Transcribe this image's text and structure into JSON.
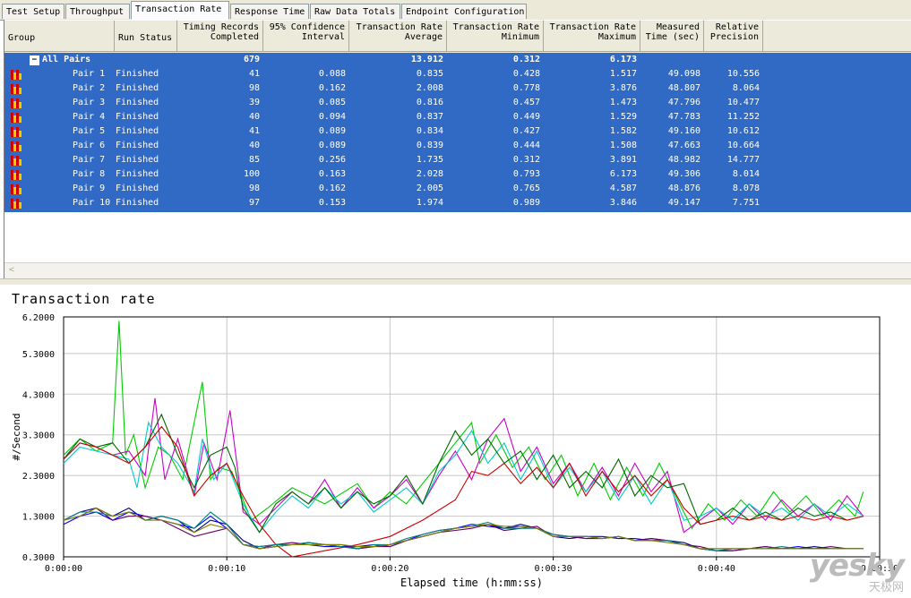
{
  "tabs": [
    {
      "label": "Test Setup",
      "active": false
    },
    {
      "label": "Throughput",
      "active": false
    },
    {
      "label": "Transaction Rate",
      "active": true
    },
    {
      "label": "Response Time",
      "active": false
    },
    {
      "label": "Raw Data Totals",
      "active": false
    },
    {
      "label": "Endpoint Configuration",
      "active": false
    }
  ],
  "table": {
    "headers": {
      "group": "Group",
      "run_status": "Run Status",
      "timing_records": [
        "Timing Records",
        "Completed"
      ],
      "confidence": [
        "95% Confidence",
        "Interval"
      ],
      "avg": [
        "Transaction Rate",
        "Average"
      ],
      "min": [
        "Transaction Rate",
        "Minimum"
      ],
      "max": [
        "Transaction Rate",
        "Maximum"
      ],
      "measured": [
        "Measured",
        "Time (sec)"
      ],
      "precision": [
        "Relative",
        "Precision"
      ]
    },
    "summary": {
      "group": "All Pairs",
      "records": "679",
      "avg": "13.912",
      "min": "0.312",
      "max": "6.173"
    },
    "rows": [
      {
        "group": "Pair 1",
        "status": "Finished",
        "records": "41",
        "ci": "0.088",
        "avg": "0.835",
        "min": "0.428",
        "max": "1.517",
        "time": "49.098",
        "prec": "10.556"
      },
      {
        "group": "Pair 2",
        "status": "Finished",
        "records": "98",
        "ci": "0.162",
        "avg": "2.008",
        "min": "0.778",
        "max": "3.876",
        "time": "48.807",
        "prec": "8.064"
      },
      {
        "group": "Pair 3",
        "status": "Finished",
        "records": "39",
        "ci": "0.085",
        "avg": "0.816",
        "min": "0.457",
        "max": "1.473",
        "time": "47.796",
        "prec": "10.477"
      },
      {
        "group": "Pair 4",
        "status": "Finished",
        "records": "40",
        "ci": "0.094",
        "avg": "0.837",
        "min": "0.449",
        "max": "1.529",
        "time": "47.783",
        "prec": "11.252"
      },
      {
        "group": "Pair 5",
        "status": "Finished",
        "records": "41",
        "ci": "0.089",
        "avg": "0.834",
        "min": "0.427",
        "max": "1.582",
        "time": "49.160",
        "prec": "10.612"
      },
      {
        "group": "Pair 6",
        "status": "Finished",
        "records": "40",
        "ci": "0.089",
        "avg": "0.839",
        "min": "0.444",
        "max": "1.508",
        "time": "47.663",
        "prec": "10.664"
      },
      {
        "group": "Pair 7",
        "status": "Finished",
        "records": "85",
        "ci": "0.256",
        "avg": "1.735",
        "min": "0.312",
        "max": "3.891",
        "time": "48.982",
        "prec": "14.777"
      },
      {
        "group": "Pair 8",
        "status": "Finished",
        "records": "100",
        "ci": "0.163",
        "avg": "2.028",
        "min": "0.793",
        "max": "6.173",
        "time": "49.306",
        "prec": "8.014"
      },
      {
        "group": "Pair 9",
        "status": "Finished",
        "records": "98",
        "ci": "0.162",
        "avg": "2.005",
        "min": "0.765",
        "max": "4.587",
        "time": "48.876",
        "prec": "8.078"
      },
      {
        "group": "Pair 10",
        "status": "Finished",
        "records": "97",
        "ci": "0.153",
        "avg": "1.974",
        "min": "0.989",
        "max": "3.846",
        "time": "49.147",
        "prec": "7.751"
      }
    ],
    "selection_color": "#316ac5"
  },
  "chart_title": "Transaction rate",
  "watermark": {
    "big": "yesky",
    "small": "天极网"
  },
  "chart_data": {
    "type": "line",
    "title": "Transaction rate",
    "xlabel": "Elapsed time (h:mm:ss)",
    "ylabel": "#/Second",
    "xlim": [
      0,
      50
    ],
    "ylim": [
      0.3,
      6.2
    ],
    "x_ticks": [
      "0:00:00",
      "0:00:10",
      "0:00:20",
      "0:00:30",
      "0:00:40",
      "0:00:50"
    ],
    "y_ticks": [
      "6.2000",
      "5.3000",
      "4.3000",
      "3.3000",
      "2.3000",
      "1.3000",
      "0.3000"
    ],
    "y_tick_values": [
      6.2,
      5.3,
      4.3,
      3.3,
      2.3,
      1.3,
      0.3
    ],
    "grid": true,
    "series": [
      {
        "color": "#00cc00",
        "x": [
          0,
          1,
          2,
          3,
          3.4,
          3.8,
          4.3,
          5,
          5.8,
          6.5,
          7.3,
          8.5,
          9,
          9.5,
          10.3,
          11.5,
          12.5,
          14,
          16,
          18,
          19,
          20,
          21,
          22,
          23,
          24,
          25,
          25.5,
          26.5,
          27.5,
          28.5,
          29.5,
          30.5,
          31.5,
          32.5,
          33.5,
          34.5,
          35.5,
          36.5,
          37.5,
          38.5,
          39.5,
          40.5,
          41.5,
          42.5,
          43.5,
          44.5,
          45.5,
          46.5,
          47.5,
          48.5,
          49
        ],
        "y": [
          2.8,
          3.2,
          2.9,
          3.1,
          6.1,
          2.8,
          3.3,
          2.0,
          3.0,
          2.8,
          2.2,
          4.6,
          2.2,
          2.5,
          2.4,
          1.2,
          1.5,
          2.0,
          1.6,
          2.1,
          1.5,
          1.9,
          1.6,
          2.1,
          2.6,
          3.1,
          3.6,
          2.6,
          3.3,
          2.5,
          3.0,
          2.2,
          2.8,
          1.8,
          2.6,
          1.7,
          2.5,
          1.8,
          2.6,
          1.8,
          1.0,
          1.6,
          1.2,
          1.7,
          1.3,
          1.9,
          1.4,
          1.8,
          1.3,
          1.7,
          1.3,
          1.9
        ]
      },
      {
        "color": "#cc00cc",
        "x": [
          0,
          1,
          2,
          3,
          4,
          5,
          5.6,
          6.2,
          7,
          8,
          8.6,
          9.4,
          10.2,
          11,
          12,
          13,
          14,
          15,
          16,
          17,
          18,
          19,
          20,
          21,
          22,
          23,
          24,
          25,
          26,
          27,
          28,
          29,
          30,
          31,
          32,
          33,
          34,
          35,
          36,
          37,
          38,
          39,
          40,
          41,
          42,
          43,
          44,
          45,
          46,
          47,
          48,
          49
        ],
        "y": [
          2.7,
          3.1,
          3.0,
          2.8,
          2.9,
          2.3,
          4.2,
          2.2,
          3.2,
          1.8,
          3.1,
          2.2,
          3.9,
          1.4,
          1.1,
          1.5,
          1.9,
          1.6,
          2.2,
          1.5,
          2.0,
          1.5,
          1.8,
          2.2,
          1.6,
          2.3,
          2.9,
          2.2,
          3.2,
          3.7,
          2.4,
          3.0,
          2.1,
          2.6,
          1.9,
          2.5,
          1.8,
          2.6,
          1.9,
          2.4,
          0.9,
          1.2,
          1.5,
          1.1,
          1.6,
          1.2,
          1.7,
          1.3,
          1.6,
          1.2,
          1.8,
          1.3
        ]
      },
      {
        "color": "#00cccc",
        "x": [
          0,
          1,
          2,
          3,
          4,
          4.5,
          5.2,
          6,
          7,
          8,
          8.5,
          9.2,
          10,
          11,
          12,
          13,
          14,
          15,
          16,
          17,
          18,
          19,
          20,
          21,
          22,
          23,
          24,
          25,
          26,
          27,
          28,
          29,
          30,
          31,
          32,
          33,
          34,
          35,
          36,
          37,
          38,
          39,
          40,
          41,
          42,
          43,
          44,
          45,
          46,
          47,
          48,
          49
        ],
        "y": [
          2.6,
          3.0,
          2.9,
          2.8,
          2.7,
          2.0,
          3.6,
          3.0,
          2.6,
          1.9,
          3.2,
          2.2,
          2.6,
          1.6,
          0.9,
          1.4,
          1.8,
          1.5,
          2.0,
          1.6,
          1.9,
          1.4,
          1.7,
          2.0,
          1.6,
          2.4,
          2.8,
          3.4,
          2.6,
          3.1,
          2.2,
          2.9,
          2.0,
          2.5,
          1.9,
          2.4,
          1.7,
          2.3,
          1.6,
          2.2,
          1.2,
          1.3,
          1.5,
          1.2,
          1.6,
          1.3,
          1.5,
          1.2,
          1.6,
          1.3,
          1.6,
          1.3
        ]
      },
      {
        "color": "#006600",
        "x": [
          0,
          1,
          2,
          3,
          4,
          5,
          6,
          7,
          8,
          9,
          10,
          10.5,
          11,
          12,
          13,
          14,
          15,
          16,
          17,
          18,
          19,
          20,
          21,
          22,
          23,
          24,
          25,
          26,
          27,
          28,
          29,
          30,
          31,
          32,
          33,
          34,
          35,
          36,
          37,
          38,
          39,
          40,
          41,
          42,
          43,
          44,
          45,
          46,
          47,
          48,
          49
        ],
        "y": [
          2.7,
          3.2,
          3.0,
          3.1,
          2.6,
          3.0,
          3.8,
          2.8,
          2.0,
          2.8,
          3.0,
          2.5,
          1.5,
          0.9,
          1.6,
          1.9,
          1.6,
          2.0,
          1.5,
          1.9,
          1.6,
          1.8,
          2.3,
          1.6,
          2.6,
          3.4,
          2.8,
          3.2,
          2.6,
          2.9,
          2.2,
          2.8,
          2.0,
          2.4,
          2.0,
          2.7,
          1.8,
          2.3,
          2.0,
          2.1,
          1.1,
          1.2,
          1.5,
          1.2,
          1.4,
          1.2,
          1.5,
          1.3,
          1.4,
          1.2,
          1.3
        ]
      },
      {
        "color": "#cc0000",
        "x": [
          0,
          1,
          2,
          3,
          4,
          5,
          6,
          7,
          8,
          9,
          10,
          11,
          12,
          13,
          14,
          16,
          18,
          20,
          22,
          24,
          25,
          26,
          27,
          28,
          29,
          30,
          31,
          32,
          33,
          34,
          35,
          36,
          37,
          38,
          39,
          40,
          41,
          42,
          43,
          44,
          45,
          46,
          47,
          48,
          49
        ],
        "y": [
          2.7,
          3.1,
          3.0,
          2.8,
          2.6,
          3.0,
          3.5,
          3.0,
          1.8,
          2.3,
          2.6,
          1.8,
          1.1,
          0.6,
          0.3,
          0.45,
          0.6,
          0.8,
          1.2,
          1.7,
          2.4,
          2.3,
          2.6,
          2.1,
          2.5,
          2.0,
          2.6,
          1.8,
          2.4,
          1.9,
          2.3,
          1.8,
          2.2,
          1.5,
          1.1,
          1.2,
          1.3,
          1.2,
          1.3,
          1.2,
          1.3,
          1.2,
          1.3,
          1.2,
          1.3
        ]
      },
      {
        "color": "#000080",
        "x": [
          0,
          1,
          2,
          3,
          4,
          5,
          6,
          7,
          8,
          9,
          10,
          11,
          12,
          13,
          14,
          15,
          16,
          17,
          18,
          19,
          20,
          21,
          22,
          23,
          24,
          25,
          26,
          27,
          28,
          29,
          30,
          31,
          32,
          33,
          34,
          35,
          36,
          37,
          38,
          39,
          40,
          41,
          42,
          43,
          44,
          45,
          46,
          47,
          48,
          49
        ],
        "y": [
          1.2,
          1.4,
          1.5,
          1.3,
          1.5,
          1.2,
          1.3,
          1.2,
          0.9,
          1.2,
          1.1,
          0.7,
          0.5,
          0.55,
          0.6,
          0.65,
          0.6,
          0.55,
          0.5,
          0.55,
          0.6,
          0.7,
          0.8,
          0.9,
          1.0,
          1.05,
          1.1,
          1.0,
          1.1,
          1.0,
          0.8,
          0.75,
          0.8,
          0.75,
          0.8,
          0.7,
          0.75,
          0.7,
          0.65,
          0.5,
          0.45,
          0.45,
          0.5,
          0.5,
          0.5,
          0.5,
          0.55,
          0.5,
          0.5,
          0.5
        ]
      },
      {
        "color": "#0000ff",
        "x": [
          0,
          1,
          2,
          3,
          4,
          5,
          6,
          7,
          8,
          9,
          10,
          11,
          12,
          13,
          14,
          15,
          16,
          17,
          18,
          19,
          20,
          21,
          22,
          23,
          24,
          25,
          26,
          27,
          28,
          29,
          30,
          31,
          32,
          33,
          34,
          35,
          36,
          37,
          38,
          39,
          40,
          41,
          42,
          43,
          44,
          45,
          46,
          47,
          48,
          49
        ],
        "y": [
          1.1,
          1.3,
          1.4,
          1.2,
          1.4,
          1.3,
          1.2,
          1.1,
          1.0,
          1.3,
          1.0,
          0.6,
          0.55,
          0.6,
          0.6,
          0.6,
          0.55,
          0.55,
          0.55,
          0.6,
          0.55,
          0.7,
          0.85,
          0.95,
          1.0,
          1.1,
          1.05,
          1.0,
          1.05,
          1.0,
          0.85,
          0.8,
          0.8,
          0.8,
          0.75,
          0.75,
          0.7,
          0.7,
          0.6,
          0.5,
          0.5,
          0.5,
          0.5,
          0.55,
          0.5,
          0.55,
          0.5,
          0.5,
          0.5,
          0.5
        ]
      },
      {
        "color": "#660066",
        "x": [
          0,
          1,
          2,
          3,
          4,
          5,
          6,
          7,
          8,
          9,
          10,
          11,
          12,
          13,
          14,
          15,
          16,
          17,
          18,
          19,
          20,
          21,
          22,
          23,
          24,
          25,
          26,
          27,
          28,
          29,
          30,
          31,
          32,
          33,
          34,
          35,
          36,
          37,
          38,
          39,
          40,
          41,
          42,
          43,
          44,
          45,
          46,
          47,
          48,
          49
        ],
        "y": [
          1.2,
          1.3,
          1.5,
          1.2,
          1.3,
          1.3,
          1.2,
          1.0,
          0.8,
          0.9,
          1.0,
          0.6,
          0.5,
          0.6,
          0.65,
          0.6,
          0.6,
          0.6,
          0.5,
          0.55,
          0.55,
          0.7,
          0.8,
          0.9,
          0.95,
          1.0,
          1.1,
          0.95,
          1.0,
          1.05,
          0.8,
          0.8,
          0.75,
          0.75,
          0.8,
          0.7,
          0.75,
          0.7,
          0.6,
          0.55,
          0.45,
          0.45,
          0.5,
          0.55,
          0.5,
          0.5,
          0.5,
          0.55,
          0.5,
          0.5
        ]
      },
      {
        "color": "#008080",
        "x": [
          0,
          1,
          2,
          3,
          4,
          5,
          6,
          7,
          8,
          9,
          10,
          11,
          12,
          13,
          14,
          15,
          16,
          17,
          18,
          19,
          20,
          21,
          22,
          23,
          24,
          25,
          26,
          27,
          28,
          29,
          30,
          31,
          32,
          33,
          34,
          35,
          36,
          37,
          38,
          39,
          40,
          41,
          42,
          43,
          44,
          45,
          46,
          47,
          48,
          49
        ],
        "y": [
          1.2,
          1.4,
          1.4,
          1.3,
          1.4,
          1.2,
          1.3,
          1.2,
          1.0,
          1.4,
          1.1,
          0.6,
          0.55,
          0.6,
          0.6,
          0.65,
          0.6,
          0.55,
          0.5,
          0.6,
          0.6,
          0.75,
          0.85,
          0.95,
          1.0,
          1.05,
          1.15,
          1.0,
          1.0,
          1.0,
          0.85,
          0.8,
          0.8,
          0.75,
          0.8,
          0.7,
          0.7,
          0.7,
          0.6,
          0.5,
          0.45,
          0.5,
          0.5,
          0.5,
          0.55,
          0.5,
          0.5,
          0.5,
          0.5,
          0.5
        ]
      },
      {
        "color": "#808000",
        "x": [
          0,
          1,
          2,
          3,
          4,
          5,
          6,
          7,
          8,
          9,
          10,
          11,
          12,
          13,
          14,
          15,
          16,
          17,
          18,
          19,
          20,
          21,
          22,
          23,
          24,
          25,
          26,
          27,
          28,
          29,
          30,
          31,
          32,
          33,
          34,
          35,
          36,
          37,
          38,
          39,
          40,
          41,
          42,
          43,
          44,
          45,
          46,
          47,
          48,
          49
        ],
        "y": [
          1.2,
          1.3,
          1.5,
          1.3,
          1.4,
          1.2,
          1.2,
          1.1,
          0.9,
          1.1,
          1.0,
          0.6,
          0.5,
          0.55,
          0.6,
          0.6,
          0.6,
          0.6,
          0.55,
          0.55,
          0.6,
          0.7,
          0.8,
          0.9,
          1.0,
          1.05,
          1.1,
          1.05,
          1.05,
          1.0,
          0.8,
          0.8,
          0.8,
          0.75,
          0.8,
          0.7,
          0.7,
          0.65,
          0.6,
          0.5,
          0.5,
          0.5,
          0.5,
          0.5,
          0.5,
          0.5,
          0.5,
          0.5,
          0.5,
          0.5
        ]
      }
    ]
  }
}
